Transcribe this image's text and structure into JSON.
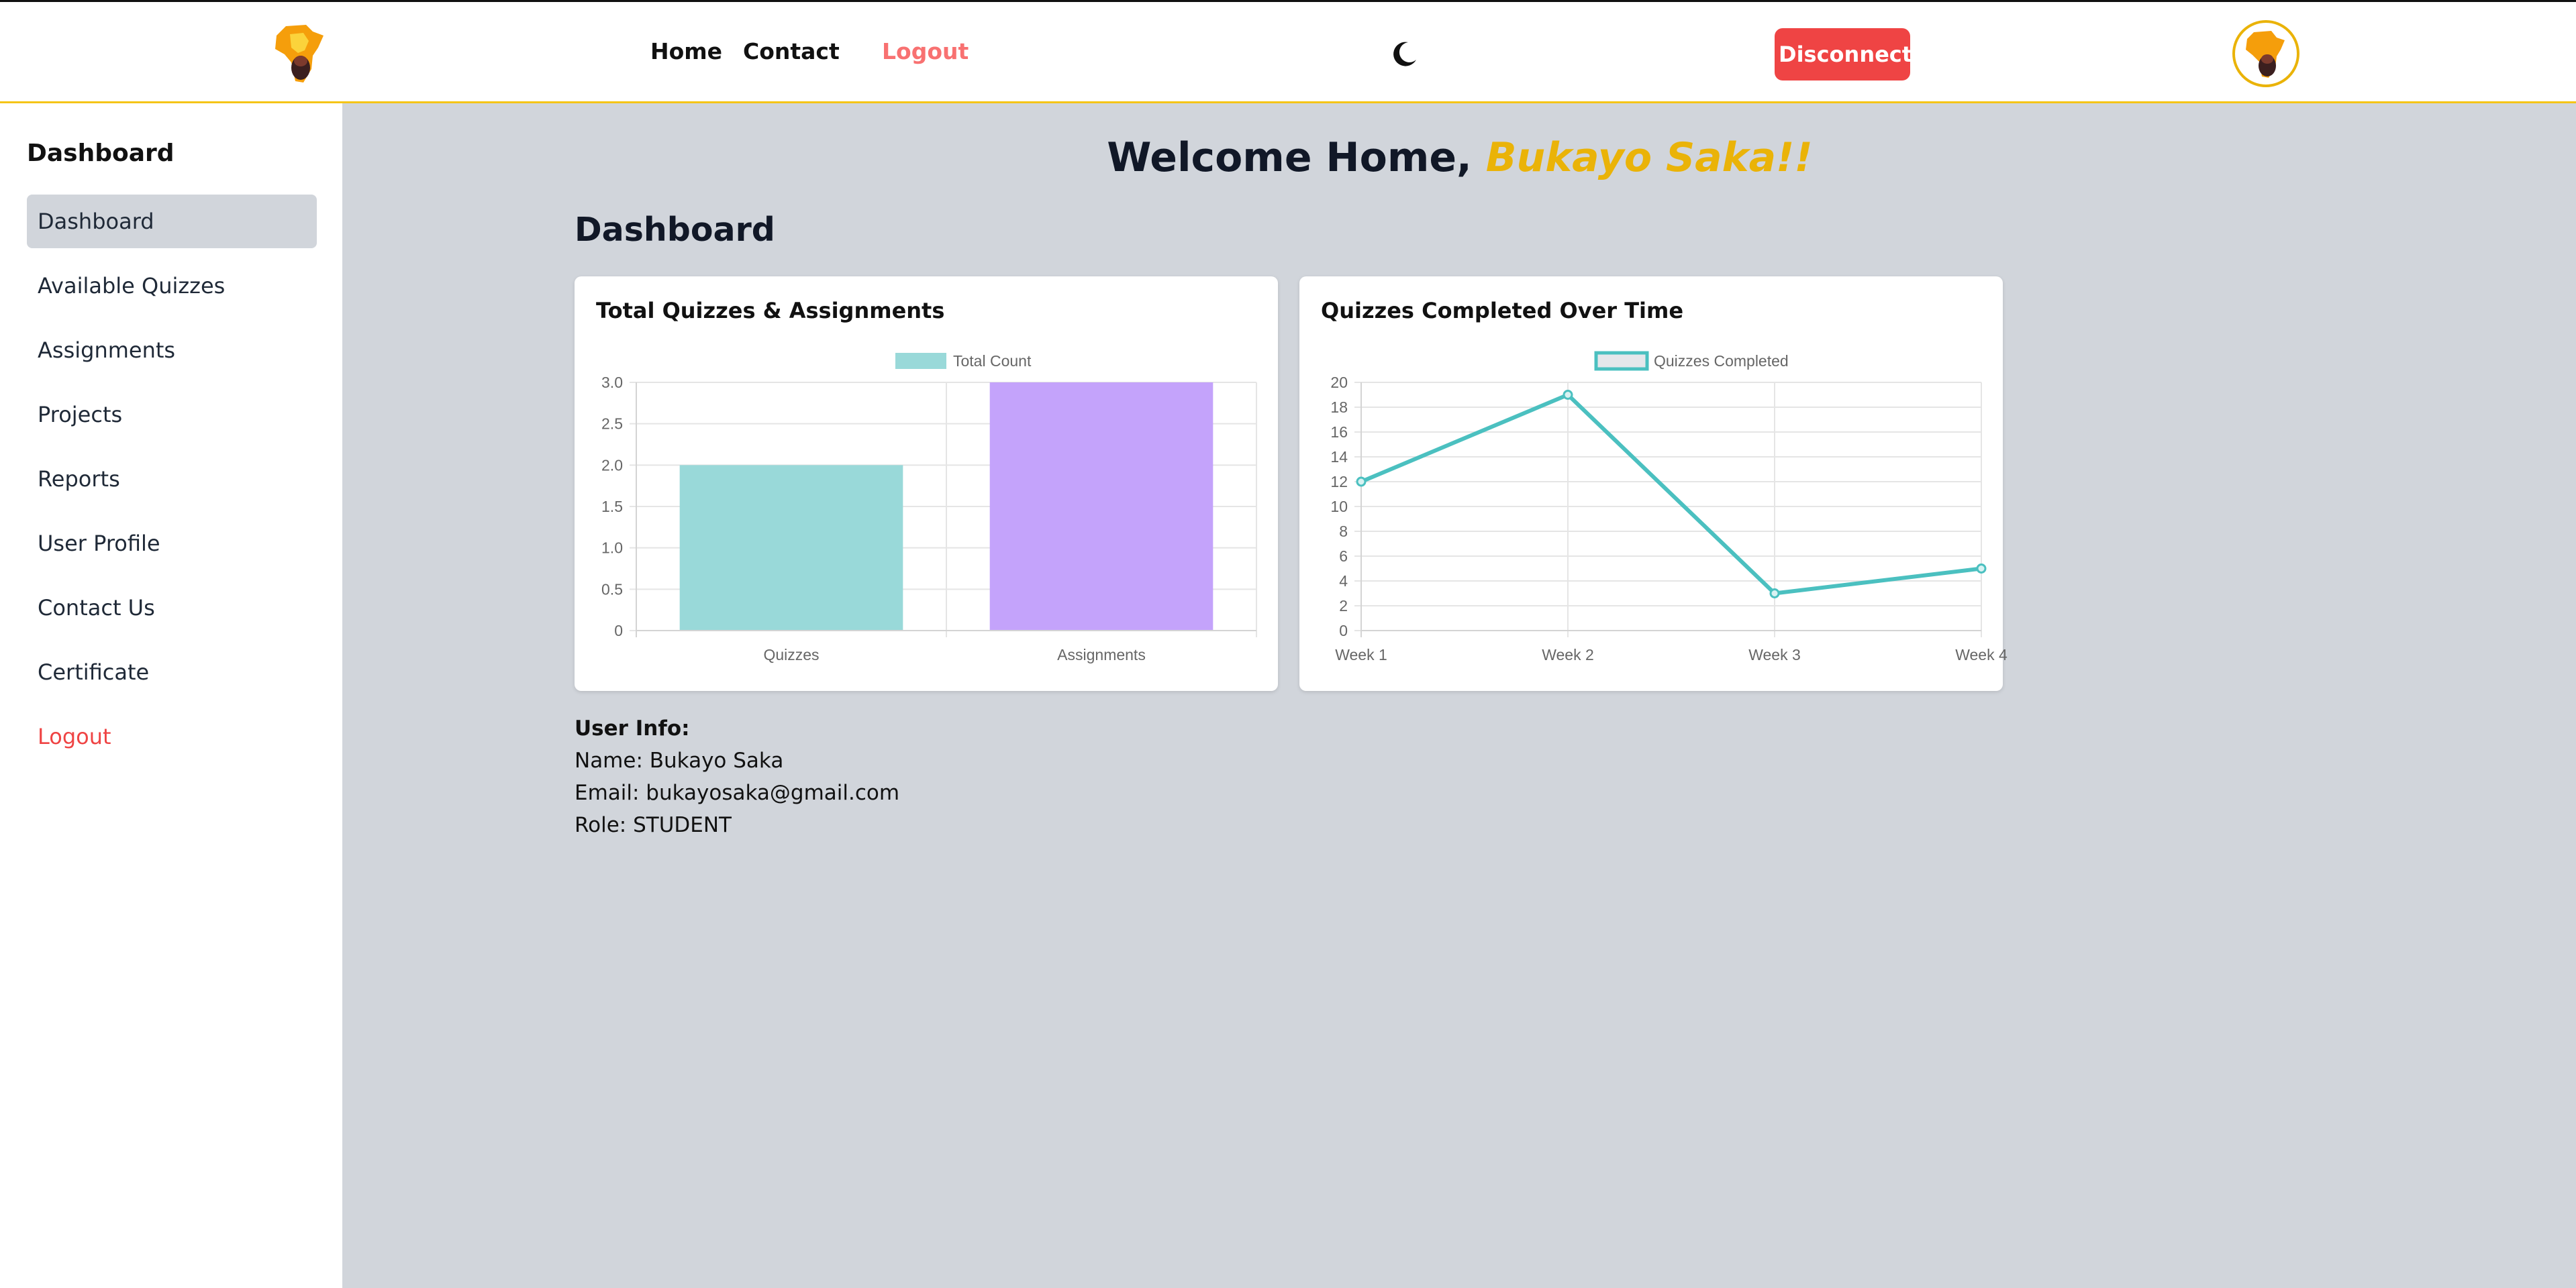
{
  "header": {
    "nav": {
      "home": "Home",
      "contact": "Contact",
      "logout": "Logout"
    },
    "disconnect_label": "Disconnect",
    "icons": {
      "logo": "africa-map-icon",
      "theme": "moon-icon",
      "avatar": "africa-map-avatar"
    },
    "colors": {
      "logout": "#f87171",
      "disconnect": "#ef4444",
      "accent": "#f5c518"
    }
  },
  "sidebar": {
    "title": "Dashboard",
    "items": [
      {
        "label": "Dashboard",
        "active": true
      },
      {
        "label": "Available Quizzes"
      },
      {
        "label": "Assignments"
      },
      {
        "label": "Projects"
      },
      {
        "label": "Reports"
      },
      {
        "label": "User Profile"
      },
      {
        "label": "Contact Us"
      },
      {
        "label": "Certificate"
      },
      {
        "label": "Logout",
        "danger": true
      }
    ]
  },
  "main": {
    "welcome_prefix": "Welcome Home, ",
    "welcome_name": "Bukayo Saka!!",
    "title": "Dashboard"
  },
  "user_info": {
    "heading": "User Info:",
    "name": "Name: Bukayo Saka",
    "email": "Email: bukayosaka@gmail.com",
    "role": "Role: STUDENT"
  },
  "chart_data": [
    {
      "type": "bar",
      "title": "Total Quizzes & Assignments",
      "categories": [
        "Quizzes",
        "Assignments"
      ],
      "series": [
        {
          "name": "Total Count",
          "values": [
            2,
            3
          ]
        }
      ],
      "bar_colors": [
        "#99d9d9",
        "#c4a3fb"
      ],
      "legend_color": "#99d9d9",
      "ylim": [
        0,
        3
      ],
      "yticks": [
        "0",
        "0.5",
        "1.0",
        "1.5",
        "2.0",
        "2.5",
        "3.0"
      ],
      "grid": true,
      "legend": "top"
    },
    {
      "type": "line",
      "title": "Quizzes Completed Over Time",
      "categories": [
        "Week 1",
        "Week 2",
        "Week 3",
        "Week 4"
      ],
      "series": [
        {
          "name": "Quizzes Completed",
          "values": [
            12,
            19,
            3,
            5
          ]
        }
      ],
      "line_color": "#4bc0c0",
      "ylim": [
        0,
        20
      ],
      "yticks": [
        "0",
        "2",
        "4",
        "6",
        "8",
        "10",
        "12",
        "14",
        "16",
        "18",
        "20"
      ],
      "grid": true,
      "legend": "top"
    }
  ]
}
